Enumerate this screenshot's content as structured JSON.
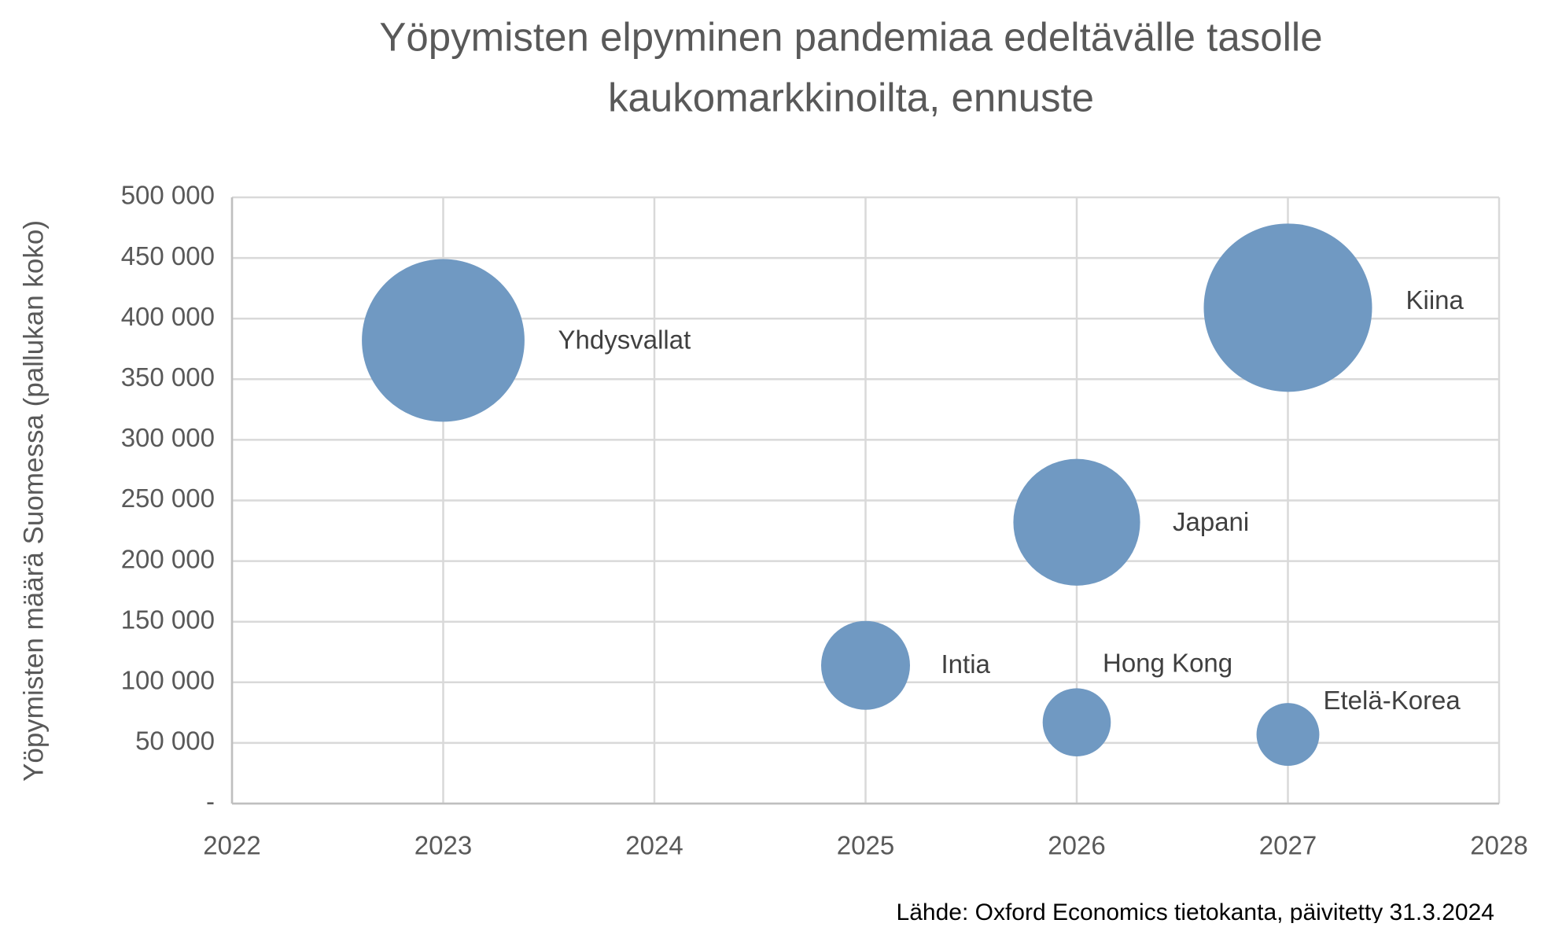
{
  "chart_data": {
    "type": "bubble",
    "title": "Yöpymisten elpyminen pandemiaa edeltävälle tasolle",
    "subtitle": "kaukomarkkinoilta, ennuste",
    "y_label": "Yöpymisten määrä Suomessa (pallukan koko)",
    "source": "Lähde: Oxford Economics tietokanta, päivitetty 31.3.2024",
    "labels": [
      "Yhdysvallat",
      "Kiina",
      "Japani",
      "Intia",
      "Hong Kong",
      "Etelä-Korea"
    ],
    "x": [
      2023,
      2027,
      2026,
      2025,
      2026,
      2027
    ],
    "values": [
      382000,
      409000,
      232000,
      114000,
      67000,
      57000
    ],
    "sizes": [
      382000,
      409000,
      232000,
      114000,
      67000,
      57000
    ],
    "color": "#7099c2",
    "xlim": [
      2022,
      2028
    ],
    "xticks": [
      2022,
      2023,
      2024,
      2025,
      2026,
      2027,
      2028
    ],
    "ylim": [
      0,
      500000
    ],
    "yticks": [
      {
        "value": 0,
        "label": "-"
      },
      {
        "value": 50000,
        "label": "50 000"
      },
      {
        "value": 100000,
        "label": "100 000"
      },
      {
        "value": 150000,
        "label": "150 000"
      },
      {
        "value": 200000,
        "label": "200 000"
      },
      {
        "value": 250000,
        "label": "250 000"
      },
      {
        "value": 300000,
        "label": "300 000"
      },
      {
        "value": 350000,
        "label": "350 000"
      },
      {
        "value": 400000,
        "label": "400 000"
      },
      {
        "value": 450000,
        "label": "450 000"
      },
      {
        "value": 500000,
        "label": "500 000"
      }
    ],
    "grid": true
  }
}
